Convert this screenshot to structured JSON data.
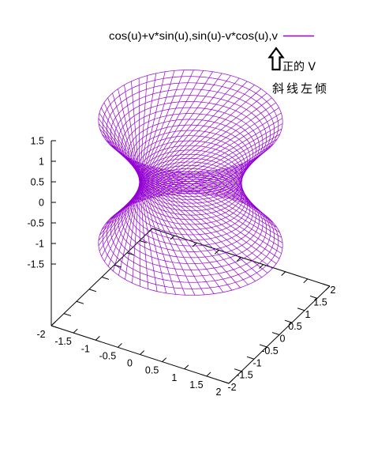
{
  "chart_data": {
    "type": "surface",
    "series": [
      {
        "name": "cos(u)+v*sin(u),sin(u)-v*cos(u),v",
        "color": "#9400d3",
        "u_range": [
          0,
          6.2832
        ],
        "v_range": [
          -1.5,
          1.5
        ]
      }
    ],
    "x_axis": {
      "range": [
        -2,
        2
      ],
      "ticks": [
        -2,
        -1.5,
        -1,
        -0.5,
        0,
        0.5,
        1,
        1.5,
        2
      ]
    },
    "y_axis": {
      "range": [
        -2,
        2
      ],
      "ticks": [
        -2,
        -1.5,
        -1,
        -0.5,
        0,
        0.5,
        1,
        1.5,
        2
      ]
    },
    "z_axis": {
      "range": [
        -1.5,
        1.5
      ],
      "ticks": [
        1.5,
        1,
        0.5,
        0,
        -0.5,
        -1,
        -1.5
      ]
    },
    "legend": "top-right",
    "grid": false
  },
  "annotation": {
    "icon": "up-arrow-icon",
    "text_1": "正的 V",
    "text_2": "斜线左倾"
  }
}
